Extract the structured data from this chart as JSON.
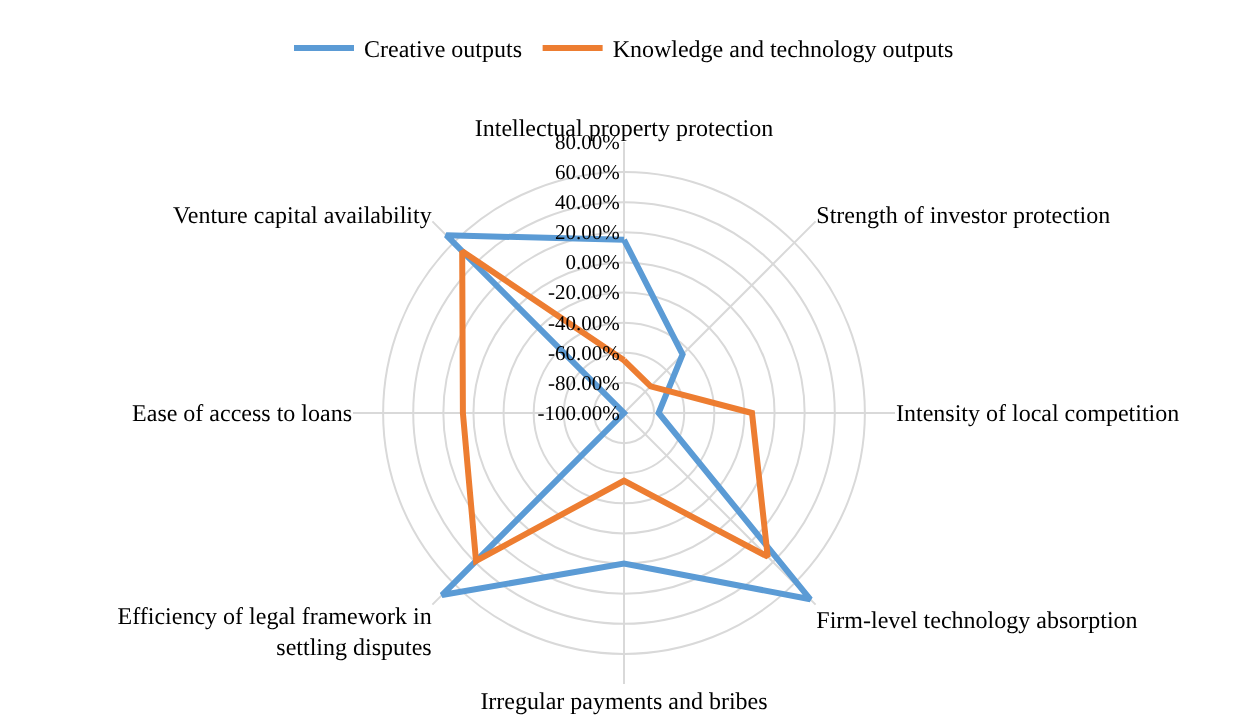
{
  "chart_data": {
    "type": "radar",
    "categories": [
      "Intellectual property protection",
      "Strength of investor protection",
      "Intensity of local competition",
      "Firm-level technology absorption",
      "Irregular payments and bribes",
      "Efficiency of legal framework in settling disputes",
      "Ease of access to loans",
      "Venture capital availability"
    ],
    "series": [
      {
        "name": "Creative outputs",
        "color": "#5b9bd5",
        "values": [
          15,
          -45,
          -77,
          75,
          0,
          71,
          -100,
          67
        ]
      },
      {
        "name": "Knowledge and technology outputs",
        "color": "#ed7d31",
        "values": [
          -65,
          -75,
          -15,
          35,
          -55,
          39,
          7,
          52
        ]
      }
    ],
    "ylim": [
      -100,
      80
    ],
    "yticks": [
      {
        "value": 80,
        "label": "80.00%"
      },
      {
        "value": 60,
        "label": "60.00%"
      },
      {
        "value": 40,
        "label": "40.00%"
      },
      {
        "value": 20,
        "label": "20.00%"
      },
      {
        "value": 0,
        "label": "0.00%"
      },
      {
        "value": -20,
        "label": "-20.00%"
      },
      {
        "value": -40,
        "label": "-40.00%"
      },
      {
        "value": -60,
        "label": "-60.00%"
      },
      {
        "value": -80,
        "label": "-80.00%"
      },
      {
        "value": -100,
        "label": "-100.00%"
      }
    ],
    "grid": true,
    "legend": "top",
    "marker": "none",
    "line_style": "solid"
  }
}
